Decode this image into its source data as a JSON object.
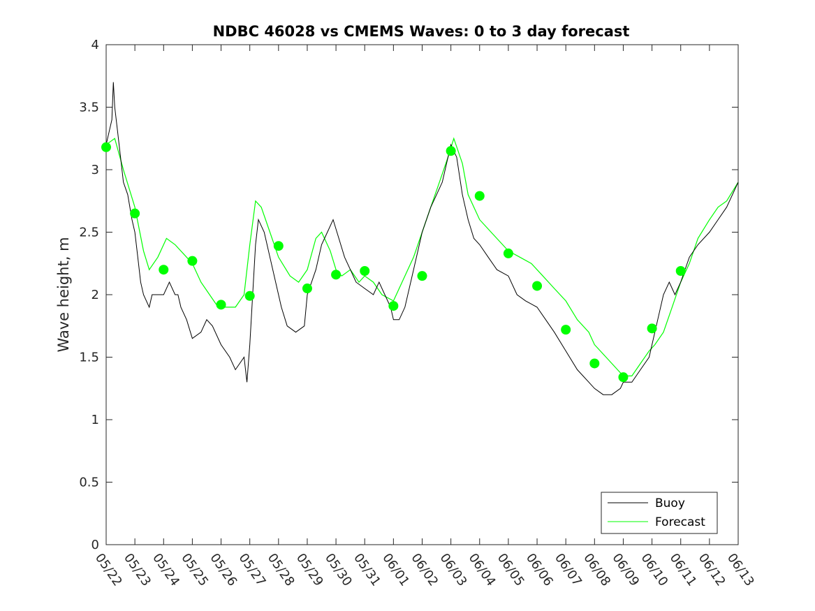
{
  "chart_data": {
    "type": "line",
    "title": "NDBC 46028 vs CMEMS Waves: 0 to 3 day forecast",
    "xlabel": "",
    "ylabel": "Wave height, m",
    "x_tick_labels": [
      "05/22",
      "05/23",
      "05/24",
      "05/25",
      "05/26",
      "05/27",
      "05/28",
      "05/29",
      "05/30",
      "05/31",
      "06/01",
      "06/02",
      "06/03",
      "06/04",
      "06/05",
      "06/06",
      "06/07",
      "06/08",
      "06/09",
      "06/10",
      "06/11",
      "06/12",
      "06/13"
    ],
    "y_ticks": [
      "0",
      "0.5",
      "1",
      "1.5",
      "2",
      "2.5",
      "3",
      "3.5",
      "4"
    ],
    "xlim": [
      0,
      22
    ],
    "ylim": [
      0,
      4
    ],
    "grid": false,
    "legend_position": "bottom-right",
    "legend": [
      "Buoy",
      "Forecast"
    ],
    "colors": {
      "buoy": "#000000",
      "forecast": "#00ff00"
    },
    "buoy": {
      "name": "Buoy",
      "x": [
        0,
        0.1,
        0.2,
        0.25,
        0.3,
        0.4,
        0.5,
        0.6,
        0.75,
        0.9,
        1.0,
        1.1,
        1.2,
        1.3,
        1.5,
        1.6,
        1.8,
        2.0,
        2.2,
        2.4,
        2.5,
        2.6,
        2.8,
        3.0,
        3.3,
        3.5,
        3.7,
        4.0,
        4.3,
        4.5,
        4.8,
        4.9,
        5.0,
        5.1,
        5.2,
        5.3,
        5.5,
        5.7,
        5.9,
        6.1,
        6.3,
        6.6,
        6.9,
        7.0,
        7.3,
        7.5,
        7.7,
        7.9,
        8.1,
        8.3,
        8.5,
        8.7,
        9.0,
        9.3,
        9.5,
        9.7,
        9.9,
        10.0,
        10.2,
        10.4,
        10.7,
        11.0,
        11.3,
        11.5,
        11.7,
        11.9,
        12.0,
        12.2,
        12.4,
        12.6,
        12.8,
        13.0,
        13.3,
        13.6,
        14.0,
        14.3,
        14.6,
        15.0,
        15.3,
        15.6,
        16.0,
        16.4,
        16.8,
        17.0,
        17.3,
        17.6,
        17.9,
        18.0,
        18.3,
        18.6,
        18.9,
        19.0,
        19.2,
        19.4,
        19.6,
        19.8,
        20.0,
        20.3,
        20.6,
        21.0,
        21.3,
        21.6,
        22.0
      ],
      "y": [
        3.2,
        3.3,
        3.4,
        3.7,
        3.5,
        3.3,
        3.1,
        2.9,
        2.8,
        2.6,
        2.5,
        2.3,
        2.1,
        2.0,
        1.9,
        2.0,
        2.0,
        2.0,
        2.1,
        2.0,
        2.0,
        1.9,
        1.8,
        1.65,
        1.7,
        1.8,
        1.75,
        1.6,
        1.5,
        1.4,
        1.5,
        1.3,
        1.6,
        2.0,
        2.4,
        2.6,
        2.5,
        2.3,
        2.1,
        1.9,
        1.75,
        1.7,
        1.75,
        2.0,
        2.2,
        2.4,
        2.5,
        2.6,
        2.45,
        2.3,
        2.2,
        2.1,
        2.05,
        2.0,
        2.1,
        2.0,
        1.9,
        1.8,
        1.8,
        1.9,
        2.2,
        2.5,
        2.7,
        2.8,
        2.9,
        3.1,
        3.2,
        3.1,
        2.8,
        2.6,
        2.45,
        2.4,
        2.3,
        2.2,
        2.15,
        2.0,
        1.95,
        1.9,
        1.8,
        1.7,
        1.55,
        1.4,
        1.3,
        1.25,
        1.2,
        1.2,
        1.25,
        1.3,
        1.3,
        1.4,
        1.5,
        1.6,
        1.8,
        2.0,
        2.1,
        2.0,
        2.1,
        2.3,
        2.4,
        2.5,
        2.6,
        2.7,
        2.9
      ]
    },
    "forecast": {
      "name": "Forecast",
      "x": [
        0,
        0.3,
        0.6,
        1.0,
        1.3,
        1.5,
        1.8,
        2.1,
        2.4,
        2.8,
        3.0,
        3.3,
        3.6,
        3.9,
        4.2,
        4.5,
        4.8,
        5.0,
        5.2,
        5.4,
        5.7,
        6.0,
        6.4,
        6.7,
        7.0,
        7.3,
        7.5,
        7.8,
        8.0,
        8.2,
        8.5,
        8.8,
        9.0,
        9.3,
        9.6,
        10.0,
        10.3,
        10.7,
        11.0,
        11.3,
        11.6,
        11.9,
        12.1,
        12.4,
        12.6,
        13.0,
        13.4,
        13.8,
        14.0,
        14.4,
        14.8,
        15.2,
        15.6,
        16.0,
        16.4,
        16.8,
        17.0,
        17.4,
        17.8,
        18.0,
        18.3,
        18.6,
        18.9,
        19.1,
        19.4,
        19.7,
        20.0,
        20.3,
        20.6,
        21.0,
        21.3,
        21.6,
        22.0
      ],
      "y": [
        3.2,
        3.25,
        3.0,
        2.7,
        2.35,
        2.2,
        2.3,
        2.45,
        2.4,
        2.3,
        2.25,
        2.1,
        2.0,
        1.9,
        1.9,
        1.9,
        2.0,
        2.4,
        2.75,
        2.7,
        2.5,
        2.3,
        2.15,
        2.1,
        2.2,
        2.45,
        2.5,
        2.35,
        2.2,
        2.15,
        2.2,
        2.1,
        2.15,
        2.1,
        2.0,
        1.95,
        2.1,
        2.3,
        2.5,
        2.7,
        2.9,
        3.1,
        3.25,
        3.05,
        2.8,
        2.6,
        2.5,
        2.4,
        2.35,
        2.3,
        2.25,
        2.15,
        2.05,
        1.95,
        1.8,
        1.7,
        1.6,
        1.5,
        1.4,
        1.35,
        1.35,
        1.45,
        1.55,
        1.6,
        1.7,
        1.9,
        2.1,
        2.25,
        2.45,
        2.6,
        2.7,
        2.75,
        2.9
      ]
    },
    "forecast_verification_points": {
      "x": [
        0,
        1,
        2,
        3,
        4,
        5,
        6,
        7,
        8,
        9,
        10,
        11,
        12,
        13,
        14,
        15,
        16,
        17,
        18,
        19,
        20
      ],
      "y": [
        3.18,
        2.65,
        2.2,
        2.27,
        1.92,
        1.99,
        2.39,
        2.05,
        2.16,
        2.19,
        1.91,
        2.15,
        3.15,
        2.79,
        2.33,
        2.07,
        1.72,
        1.45,
        1.34,
        1.73,
        2.19
      ]
    }
  }
}
